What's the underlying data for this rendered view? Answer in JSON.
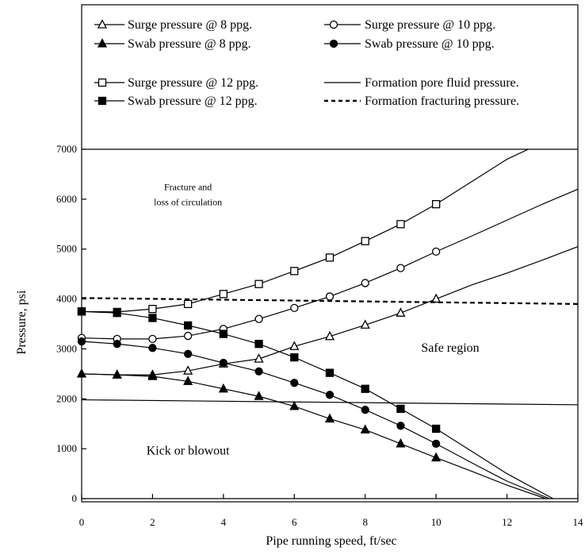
{
  "chart_data": {
    "type": "line",
    "xlabel": "Pipe running speed,  ft/sec",
    "ylabel": "Pressure,  psi",
    "xlim": [
      0,
      14
    ],
    "ylim": [
      0,
      7000
    ],
    "xticks": [
      0,
      2,
      4,
      6,
      8,
      10,
      12,
      14
    ],
    "yticks": [
      0,
      1000,
      2000,
      3000,
      4000,
      5000,
      6000,
      7000
    ],
    "grid": false,
    "legend_position": "top",
    "series": [
      {
        "name": "Surge pressure @ 8  ppg.",
        "marker": "triangle-open",
        "line": "solid",
        "x": [
          0,
          1,
          2,
          3,
          4,
          5,
          6,
          7,
          8,
          9,
          10,
          11,
          12,
          13,
          14
        ],
        "y": [
          2500,
          2480,
          2480,
          2560,
          2700,
          2800,
          3050,
          3250,
          3480,
          3720,
          4000,
          4280,
          4520,
          4780,
          5050
        ],
        "markers_until": 10
      },
      {
        "name": "Swab pressure @ 8  ppg.",
        "marker": "triangle-filled",
        "line": "solid",
        "x": [
          0,
          1,
          2,
          3,
          4,
          5,
          6,
          7,
          8,
          9,
          10,
          11,
          12,
          13.1
        ],
        "y": [
          2500,
          2480,
          2450,
          2350,
          2200,
          2050,
          1850,
          1600,
          1380,
          1100,
          820,
          550,
          270,
          0
        ],
        "markers_until": 10
      },
      {
        "name": "Surge pressure @ 10 ppg.",
        "marker": "circle-open",
        "line": "solid",
        "x": [
          0,
          1,
          2,
          3,
          4,
          5,
          6,
          7,
          8,
          9,
          10,
          11,
          12,
          13,
          14
        ],
        "y": [
          3220,
          3200,
          3200,
          3260,
          3400,
          3600,
          3820,
          4050,
          4320,
          4620,
          4950,
          5260,
          5580,
          5900,
          6200
        ],
        "markers_until": 10
      },
      {
        "name": "Swab pressure @ 10  ppg.",
        "marker": "circle-filled",
        "line": "solid",
        "x": [
          0,
          1,
          2,
          3,
          4,
          5,
          6,
          7,
          8,
          9,
          10,
          11,
          12,
          13.2
        ],
        "y": [
          3150,
          3100,
          3020,
          2900,
          2720,
          2550,
          2320,
          2080,
          1780,
          1460,
          1100,
          720,
          350,
          0
        ],
        "markers_until": 10
      },
      {
        "name": "Surge pressure @ 12 ppg.",
        "marker": "square-open",
        "line": "solid",
        "x": [
          0,
          1,
          2,
          3,
          4,
          5,
          6,
          7,
          8,
          9,
          10,
          11,
          12,
          12.6
        ],
        "y": [
          3750,
          3740,
          3800,
          3900,
          4100,
          4300,
          4560,
          4830,
          5160,
          5500,
          5900,
          6350,
          6800,
          7000
        ],
        "markers_until": 10
      },
      {
        "name": "Swab pressure @ 12 ppg.",
        "marker": "square-filled",
        "line": "solid",
        "x": [
          0,
          1,
          2,
          3,
          4,
          5,
          6,
          7,
          8,
          9,
          10,
          11,
          12,
          13.3
        ],
        "y": [
          3750,
          3720,
          3620,
          3470,
          3300,
          3100,
          2830,
          2520,
          2200,
          1800,
          1400,
          950,
          500,
          0
        ],
        "markers_until": 10
      },
      {
        "name": "Formation pore fluid pressure.",
        "marker": "none",
        "line": "solid",
        "x": [
          0,
          14
        ],
        "y": [
          1980,
          1880
        ]
      },
      {
        "name": "Formation fracturing pressure.",
        "marker": "none",
        "line": "dashed",
        "x": [
          0,
          14
        ],
        "y": [
          4020,
          3900
        ]
      }
    ],
    "annotations": [
      {
        "text": "Fracture and",
        "x": 3.0,
        "y": 6180,
        "size": "small"
      },
      {
        "text": "loss of circulation",
        "x": 3.0,
        "y": 5880,
        "size": "small"
      },
      {
        "text": "Safe region",
        "x": 10.4,
        "y": 2940,
        "size": "large"
      },
      {
        "text": "Kick or blowout",
        "x": 3.0,
        "y": 880,
        "size": "large"
      }
    ]
  }
}
